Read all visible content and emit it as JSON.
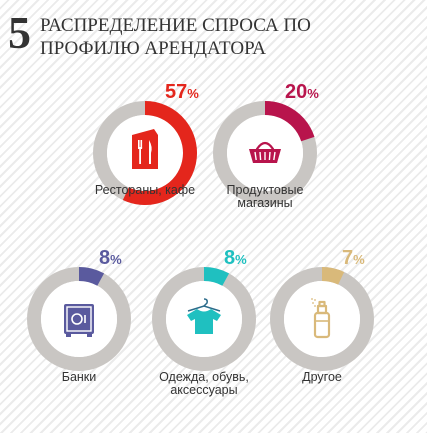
{
  "header": {
    "number": "5",
    "title": "РАСПРЕДЕЛЕНИЕ СПРОСА ПО ПРОФИЛЮ АРЕНДАТОРА"
  },
  "colors": {
    "track": "#c9c6c3",
    "inner": "#ffffff",
    "restaurants": "#e4261c",
    "food_stores": "#b8144c",
    "banks": "#5a5a9e",
    "clothing": "#1fc0c0",
    "other": "#d9b97a"
  },
  "chart_data": {
    "type": "donut",
    "unit": "%",
    "categories": [
      "Рестораны, кафе",
      "Продуктовые магазины",
      "Банки",
      "Одежда, обувь, аксессуары",
      "Другое"
    ],
    "values": [
      57,
      20,
      8,
      8,
      7
    ],
    "items": [
      {
        "label_lines": [
          "Рестораны, кафе"
        ],
        "value": 57,
        "value_text": "57",
        "unit_text": "%",
        "icon": "restaurant-menu-icon",
        "color_key": "restaurants"
      },
      {
        "label_lines": [
          "Продуктовые",
          "магазины"
        ],
        "value": 20,
        "value_text": "20",
        "unit_text": "%",
        "icon": "shopping-basket-icon",
        "color_key": "food_stores"
      },
      {
        "label_lines": [
          "Банки"
        ],
        "value": 8,
        "value_text": "8",
        "unit_text": "%",
        "icon": "bank-safe-icon",
        "color_key": "banks"
      },
      {
        "label_lines": [
          "Одежда, обувь,",
          "аксессуары"
        ],
        "value": 8,
        "value_text": "8",
        "unit_text": "%",
        "icon": "t-shirt-icon",
        "color_key": "clothing"
      },
      {
        "label_lines": [
          "Другое"
        ],
        "value": 7,
        "value_text": "7",
        "unit_text": "%",
        "icon": "spray-bottle-icon",
        "color_key": "other"
      }
    ]
  }
}
